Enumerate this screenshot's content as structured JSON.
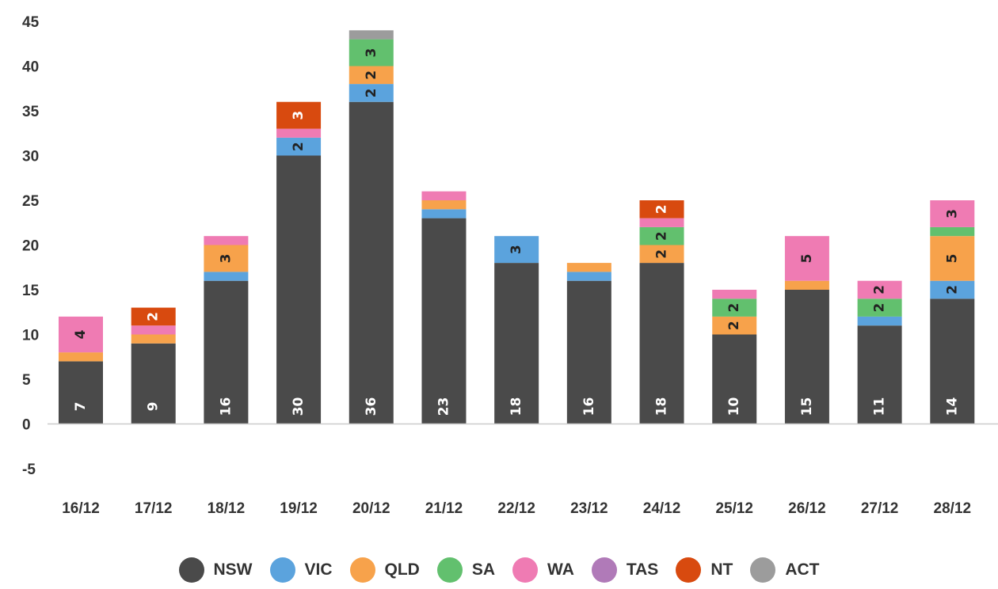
{
  "chart_data": {
    "type": "bar",
    "stacked": true,
    "title": "",
    "xlabel": "",
    "ylabel": "",
    "ylim": [
      -5,
      45
    ],
    "yticks": [
      -5,
      0,
      5,
      10,
      15,
      20,
      25,
      30,
      35,
      40,
      45
    ],
    "grid": false,
    "legend_position": "bottom",
    "categories": [
      "16/12",
      "17/12",
      "18/12",
      "19/12",
      "20/12",
      "21/12",
      "22/12",
      "23/12",
      "24/12",
      "25/12",
      "26/12",
      "27/12",
      "28/12"
    ],
    "series": [
      {
        "name": "NSW",
        "color": "#4a4a4a",
        "label_color": "#ffffff",
        "values": [
          7,
          9,
          16,
          30,
          36,
          23,
          18,
          16,
          18,
          10,
          15,
          11,
          14
        ],
        "labels": [
          "7",
          "9",
          "16",
          "30",
          "36",
          "23",
          "18",
          "16",
          "18",
          "10",
          "15",
          "11",
          "14"
        ]
      },
      {
        "name": "VIC",
        "color": "#5ba3dd",
        "label_color": "#222222",
        "values": [
          0,
          0,
          1,
          2,
          2,
          1,
          3,
          1,
          0,
          0,
          0,
          1,
          2
        ],
        "labels": [
          "",
          "",
          "",
          "2",
          "2",
          "",
          "3",
          "",
          "",
          "",
          "",
          "",
          "2"
        ]
      },
      {
        "name": "QLD",
        "color": "#f7a24b",
        "label_color": "#222222",
        "values": [
          1,
          1,
          3,
          0,
          2,
          1,
          0,
          1,
          2,
          2,
          1,
          0,
          5
        ],
        "labels": [
          "",
          "",
          "3",
          "",
          "2",
          "",
          "",
          "",
          "2",
          "2",
          "",
          "",
          "5"
        ]
      },
      {
        "name": "SA",
        "color": "#62c06e",
        "label_color": "#222222",
        "values": [
          0,
          0,
          0,
          0,
          3,
          0,
          0,
          0,
          2,
          2,
          0,
          2,
          1
        ],
        "labels": [
          "",
          "",
          "",
          "",
          "3",
          "",
          "",
          "",
          "2",
          "2",
          "",
          "2",
          ""
        ]
      },
      {
        "name": "WA",
        "color": "#ef7bb3",
        "label_color": "#222222",
        "values": [
          4,
          1,
          1,
          1,
          0,
          1,
          0,
          0,
          1,
          1,
          5,
          2,
          3
        ],
        "labels": [
          "4",
          "",
          "",
          "",
          "",
          "",
          "",
          "",
          "",
          "",
          "5",
          "2",
          "3"
        ]
      },
      {
        "name": "TAS",
        "color": "#b07ab8",
        "label_color": "#222222",
        "values": [
          0,
          0,
          0,
          0,
          0,
          0,
          0,
          0,
          0,
          0,
          0,
          0,
          0
        ],
        "labels": [
          "",
          "",
          "",
          "",
          "",
          "",
          "",
          "",
          "",
          "",
          "",
          "",
          ""
        ]
      },
      {
        "name": "NT",
        "color": "#d84a0f",
        "label_color": "#ffffff",
        "values": [
          0,
          2,
          0,
          3,
          0,
          0,
          0,
          0,
          2,
          0,
          0,
          0,
          0
        ],
        "labels": [
          "",
          "2",
          "",
          "3",
          "",
          "",
          "",
          "",
          "2",
          "",
          "",
          "",
          ""
        ]
      },
      {
        "name": "ACT",
        "color": "#9c9c9c",
        "label_color": "#222222",
        "values": [
          0,
          0,
          0,
          0,
          1,
          0,
          0,
          0,
          0,
          0,
          0,
          0,
          0
        ],
        "labels": [
          "",
          "",
          "",
          "",
          "",
          "",
          "",
          "",
          "",
          "",
          "",
          "",
          ""
        ]
      }
    ]
  }
}
